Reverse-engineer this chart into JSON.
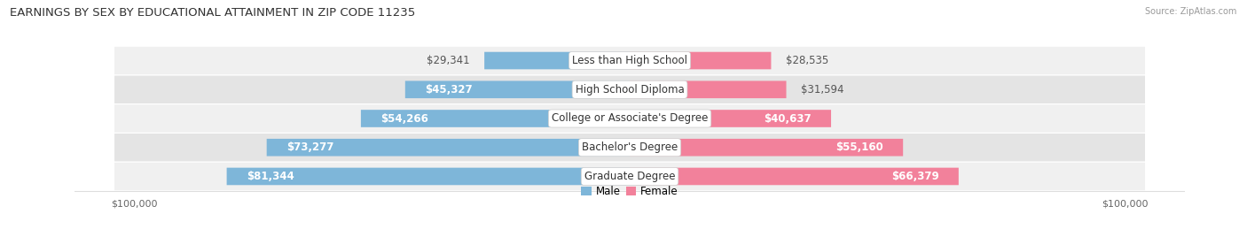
{
  "title": "EARNINGS BY SEX BY EDUCATIONAL ATTAINMENT IN ZIP CODE 11235",
  "source": "Source: ZipAtlas.com",
  "categories": [
    "Less than High School",
    "High School Diploma",
    "College or Associate's Degree",
    "Bachelor's Degree",
    "Graduate Degree"
  ],
  "male_values": [
    29341,
    45327,
    54266,
    73277,
    81344
  ],
  "female_values": [
    28535,
    31594,
    40637,
    55160,
    66379
  ],
  "male_labels": [
    "$29,341",
    "$45,327",
    "$54,266",
    "$73,277",
    "$81,344"
  ],
  "female_labels": [
    "$28,535",
    "$31,594",
    "$40,637",
    "$55,160",
    "$66,379"
  ],
  "male_color": "#7EB6D9",
  "female_color": "#F2819B",
  "row_bg_even": "#F0F0F0",
  "row_bg_odd": "#E4E4E4",
  "max_value": 100000,
  "title_fontsize": 9.5,
  "label_fontsize": 8.5,
  "cat_fontsize": 8.5,
  "tick_fontsize": 8,
  "background_color": "#FFFFFF",
  "male_label_inside_threshold": 45000,
  "female_label_inside_threshold": 38000
}
